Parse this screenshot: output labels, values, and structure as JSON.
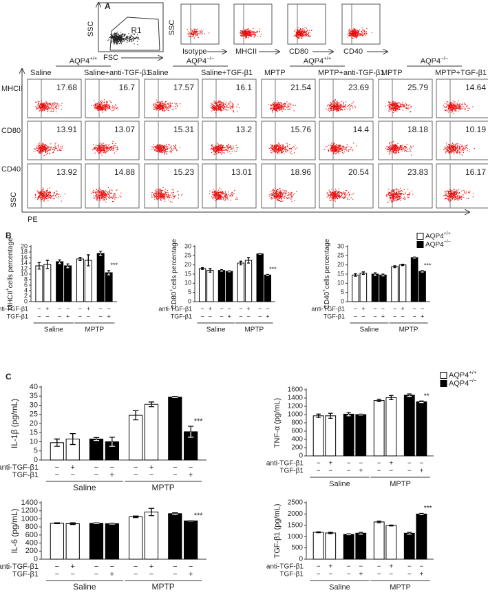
{
  "panel_a": {
    "label": "A",
    "gating": {
      "y_label": "SSC",
      "x_label": "FSC",
      "gate": "R1"
    },
    "isotype_y_label": "SSC",
    "isotype_plots": [
      "Isotype",
      "MHCII",
      "CD80",
      "CD40"
    ],
    "groups": [
      {
        "base": "AQP4",
        "sup": "+/+",
        "columns": [
          "Saline",
          "Saline+anti-TGF-β1"
        ]
      },
      {
        "base": "AQP4",
        "sup": "−/−",
        "columns": [
          "Saline",
          "Saline+TGF-β1"
        ]
      },
      {
        "base": "AQP4",
        "sup": "+/+",
        "columns": [
          "MPTP",
          "MPTP+anti-TGF-β1"
        ]
      },
      {
        "base": "AQP4",
        "sup": "−/−",
        "columns": [
          "MPTP",
          "MPTP+TGF-β1"
        ]
      }
    ],
    "rows": [
      {
        "label": "MHCII",
        "values": [
          17.68,
          16.7,
          17.57,
          16.1,
          21.54,
          23.69,
          25.79,
          14.64
        ]
      },
      {
        "label": "CD80",
        "values": [
          13.91,
          13.07,
          15.31,
          13.2,
          15.76,
          14.4,
          18.18,
          10.19
        ]
      },
      {
        "label": "CD40",
        "values": [
          13.92,
          14.88,
          15.23,
          13.01,
          18.96,
          20.54,
          23.83,
          16.17
        ]
      }
    ],
    "y_label": "SSC",
    "x_label": "PE"
  },
  "chart_data": [
    {
      "type": "bar",
      "panel": "B",
      "y_label": {
        "base": "MHCII",
        "sup": "+",
        "tail": "cells percentage"
      },
      "ylim": [
        0,
        20
      ],
      "yticks": [
        0,
        2,
        4,
        6,
        8,
        10,
        12,
        14,
        16,
        18,
        20
      ],
      "series": [
        {
          "color": "#ffffff",
          "values": [
            13,
            13.5,
            null,
            null,
            15.5,
            15,
            null,
            null
          ],
          "errors": [
            1.2,
            1.5,
            null,
            null,
            0.6,
            2,
            null,
            null
          ]
        },
        {
          "color": "#000000",
          "values": [
            null,
            null,
            14.5,
            13,
            null,
            null,
            17.5,
            10.5
          ],
          "errors": [
            null,
            null,
            0.7,
            0.7,
            null,
            null,
            0.8,
            0.8
          ]
        }
      ],
      "treatments": [
        {
          "label": "anti-TGF-β1",
          "marks": [
            "−",
            "+",
            "−",
            "−",
            "−",
            "+",
            "−",
            "−"
          ]
        },
        {
          "label": "TGF-β1",
          "marks": [
            "−",
            "−",
            "−",
            "+",
            "−",
            "−",
            "−",
            "+"
          ]
        }
      ],
      "groups": [
        "Saline",
        "MPTP"
      ],
      "annotation": "***"
    },
    {
      "type": "bar",
      "y_label": {
        "base": "CD80",
        "sup": "+",
        "tail": "cells percentage"
      },
      "ylim": [
        0,
        30
      ],
      "yticks": [
        0,
        5,
        10,
        15,
        20,
        25,
        30
      ],
      "series": [
        {
          "color": "#ffffff",
          "values": [
            18,
            17,
            null,
            null,
            21,
            22.5,
            null,
            null
          ],
          "errors": [
            0.5,
            1,
            null,
            null,
            1,
            1.5,
            null,
            null
          ]
        },
        {
          "color": "#000000",
          "values": [
            null,
            null,
            17,
            16.5,
            null,
            null,
            26,
            14.5
          ],
          "errors": [
            null,
            null,
            0.4,
            0.3,
            null,
            null,
            0.2,
            0.3
          ]
        }
      ],
      "treatments": [
        {
          "label": "anti-TGF-β1",
          "marks": [
            "−",
            "+",
            "−",
            "−",
            "−",
            "+",
            "−",
            "−"
          ]
        },
        {
          "label": "TGF-β1",
          "marks": [
            "−",
            "−",
            "−",
            "+",
            "−",
            "−",
            "−",
            "+"
          ]
        }
      ],
      "groups": [
        "Saline",
        "MPTP"
      ],
      "annotation": "***"
    },
    {
      "type": "bar",
      "y_label": {
        "base": "CD40",
        "sup": "+",
        "tail": "cells percentage"
      },
      "ylim": [
        0,
        30
      ],
      "yticks": [
        0,
        5,
        10,
        15,
        20,
        25,
        30
      ],
      "series": [
        {
          "name": "AQP4",
          "sup": "+/+",
          "color": "#ffffff",
          "values": [
            14.5,
            15.5,
            null,
            null,
            19,
            20,
            null,
            null
          ],
          "errors": [
            0.7,
            0.7,
            null,
            null,
            0.5,
            0.4,
            null,
            null
          ]
        },
        {
          "name": "AQP4",
          "sup": "−/−",
          "color": "#000000",
          "values": [
            null,
            null,
            15,
            14.5,
            null,
            null,
            24,
            16.5
          ],
          "errors": [
            null,
            null,
            0.7,
            0.5,
            null,
            null,
            0.3,
            0.4
          ]
        }
      ],
      "treatments": [
        {
          "label": "anti-TGF-β1",
          "marks": [
            "−",
            "+",
            "−",
            "−",
            "−",
            "+",
            "−",
            "−"
          ]
        },
        {
          "label": "TGF-β1",
          "marks": [
            "−",
            "−",
            "−",
            "+",
            "−",
            "−",
            "−",
            "+"
          ]
        }
      ],
      "groups": [
        "Saline",
        "MPTP"
      ],
      "annotation": "***",
      "legend": "top-right"
    },
    {
      "type": "bar",
      "panel": "C",
      "y_label": {
        "base": "IL-1β  (pg/mL)"
      },
      "ylim": [
        0,
        40
      ],
      "yticks": [
        0,
        5,
        10,
        15,
        20,
        25,
        30,
        35,
        40
      ],
      "series": [
        {
          "color": "#ffffff",
          "values": [
            9.5,
            11.5,
            null,
            null,
            24.5,
            30.5,
            null,
            null
          ],
          "errors": [
            2,
            3,
            null,
            null,
            2.5,
            1.3,
            null,
            null
          ]
        },
        {
          "color": "#000000",
          "values": [
            null,
            null,
            11.5,
            10,
            null,
            null,
            34.5,
            15.5
          ],
          "errors": [
            null,
            null,
            0.8,
            2.5,
            null,
            null,
            0.3,
            3
          ]
        }
      ],
      "treatments": [
        {
          "label": "anti-TGF-β1",
          "marks": [
            "−",
            "+",
            "−",
            "−",
            "−",
            "+",
            "−",
            "−"
          ]
        },
        {
          "label": "TGF-β1",
          "marks": [
            "−",
            "−",
            "−",
            "+",
            "−",
            "−",
            "−",
            "+"
          ]
        }
      ],
      "groups": [
        "Saline",
        "MPTP"
      ],
      "annotation": "***"
    },
    {
      "type": "bar",
      "y_label": {
        "base": "TNF-α  (pg/mL)"
      },
      "ylim": [
        0,
        1600
      ],
      "yticks": [
        0,
        200,
        400,
        600,
        800,
        1000,
        1200,
        1400,
        1600
      ],
      "series": [
        {
          "name": "AQP4",
          "sup": "+/+",
          "color": "#ffffff",
          "values": [
            970,
            970,
            null,
            null,
            1340,
            1410,
            null,
            null
          ],
          "errors": [
            40,
            60,
            null,
            null,
            30,
            50,
            null,
            null
          ]
        },
        {
          "name": "AQP4",
          "sup": "−/−",
          "color": "#000000",
          "values": [
            null,
            null,
            1010,
            1000,
            null,
            null,
            1470,
            1310
          ],
          "errors": [
            null,
            null,
            40,
            10,
            null,
            null,
            30,
            20
          ]
        }
      ],
      "treatments": [
        {
          "label": "anti-TGF-β1",
          "marks": [
            "−",
            "+",
            "−",
            "−",
            "−",
            "+",
            "−",
            "−"
          ]
        },
        {
          "label": "TGF-β1",
          "marks": [
            "−",
            "−",
            "−",
            "+",
            "−",
            "−",
            "−",
            "+"
          ]
        }
      ],
      "groups": [
        "Saline",
        "MPTP"
      ],
      "annotation": "**",
      "legend": "top-right"
    },
    {
      "type": "bar",
      "y_label": {
        "base": "IL-6  (pg/mL)"
      },
      "ylim": [
        0,
        1400
      ],
      "yticks": [
        0,
        200,
        400,
        600,
        800,
        1000,
        1200,
        1400
      ],
      "series": [
        {
          "color": "#ffffff",
          "values": [
            890,
            880,
            null,
            null,
            1050,
            1170,
            null,
            null
          ],
          "errors": [
            10,
            20,
            null,
            null,
            20,
            90,
            null,
            null
          ]
        },
        {
          "color": "#000000",
          "values": [
            null,
            null,
            890,
            880,
            null,
            null,
            1130,
            950
          ],
          "errors": [
            null,
            null,
            10,
            10,
            null,
            null,
            20,
            5
          ]
        }
      ],
      "treatments": [
        {
          "label": "anti-TGF-β1",
          "marks": [
            "−",
            "+",
            "−",
            "−",
            "−",
            "+",
            "−",
            "−"
          ]
        },
        {
          "label": "TGF-β1",
          "marks": [
            "−",
            "−",
            "−",
            "+",
            "−",
            "−",
            "−",
            "+"
          ]
        }
      ],
      "groups": [
        "Saline",
        "MPTP"
      ],
      "annotation": "***"
    },
    {
      "type": "bar",
      "y_label": {
        "base": "TGF-β1  (pg/mL)"
      },
      "ylim": [
        0,
        2500
      ],
      "yticks": [
        0,
        500,
        1000,
        1500,
        2000,
        2500
      ],
      "series": [
        {
          "color": "#ffffff",
          "values": [
            1190,
            1160,
            null,
            null,
            1650,
            1490,
            null,
            null
          ],
          "errors": [
            20,
            30,
            null,
            null,
            40,
            20,
            null,
            null
          ]
        },
        {
          "color": "#000000",
          "values": [
            null,
            null,
            1100,
            1150,
            null,
            null,
            1150,
            2000
          ],
          "errors": [
            null,
            null,
            20,
            40,
            null,
            null,
            40,
            30
          ]
        }
      ],
      "treatments": [
        {
          "label": "anti-TGF-β1",
          "marks": [
            "−",
            "+",
            "−",
            "−",
            "−",
            "+",
            "−",
            "−"
          ]
        },
        {
          "label": "TGF-β1",
          "marks": [
            "−",
            "−",
            "−",
            "+",
            "−",
            "−",
            "−",
            "+"
          ]
        }
      ],
      "groups": [
        "Saline",
        "MPTP"
      ],
      "annotation": "***"
    }
  ]
}
